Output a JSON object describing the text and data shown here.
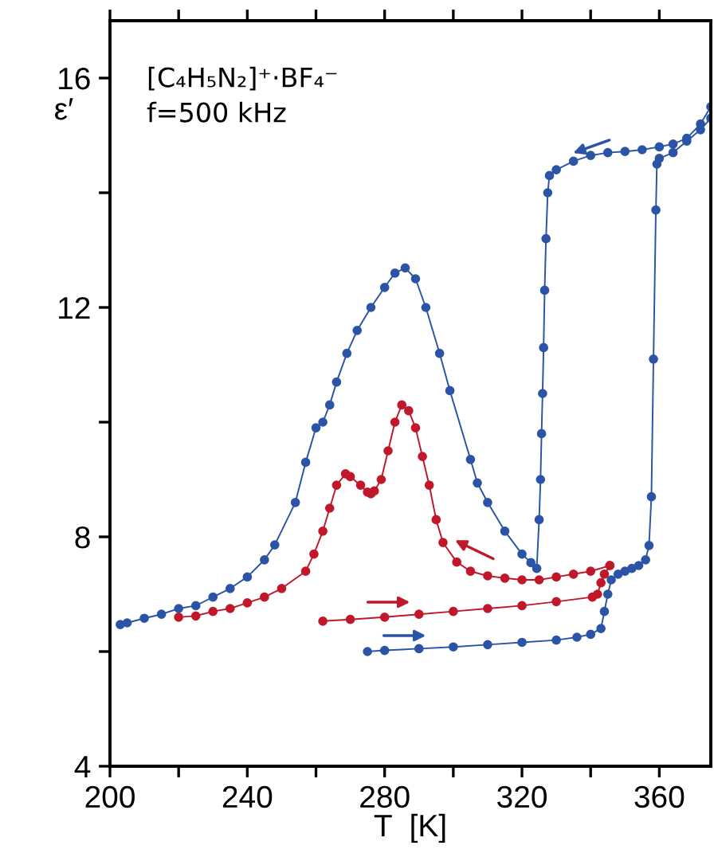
{
  "chart_data": {
    "type": "line",
    "xlabel": "T  [K]",
    "ylabel": "ε′",
    "annotations": [
      "[C₄H₅N₂]⁺·BF₄⁻",
      "f=500 kHz"
    ],
    "xlim": [
      200,
      375
    ],
    "ylim": [
      4,
      17
    ],
    "xticks": [
      200,
      {
        "value": 220,
        "label": null
      },
      240,
      {
        "value": 260,
        "label": null
      },
      280,
      {
        "value": 300,
        "label": null
      },
      320,
      {
        "value": 340,
        "label": null
      },
      360
    ],
    "yticks": [
      4,
      {
        "value": 6,
        "label": null
      },
      8,
      {
        "value": 10,
        "label": null
      },
      12,
      {
        "value": 14,
        "label": null
      },
      16
    ],
    "marker": "circle",
    "line_style": "solid",
    "grid": false,
    "legend": false,
    "series": [
      {
        "color": "#2b54a6",
        "x": [
          275,
          280,
          290,
          300,
          310,
          320,
          330,
          336,
          340,
          343,
          344,
          345,
          346,
          348,
          350,
          352,
          354,
          356,
          357,
          357.7,
          358.3,
          359,
          359.3,
          360,
          364,
          368,
          372,
          375
        ],
        "values": [
          6.0,
          6.02,
          6.05,
          6.08,
          6.12,
          6.16,
          6.2,
          6.25,
          6.3,
          6.4,
          6.7,
          7.0,
          7.25,
          7.35,
          7.4,
          7.45,
          7.5,
          7.6,
          7.85,
          8.7,
          11.1,
          13.7,
          14.5,
          14.6,
          14.7,
          14.9,
          15.1,
          15.3
        ]
      },
      {
        "color": "#2b54a6",
        "x": [
          375,
          372,
          368,
          364,
          360,
          355,
          350,
          345,
          340,
          335,
          330,
          328,
          327.5,
          327,
          326.6,
          326.3,
          326,
          325.7,
          325.4,
          325,
          324.3,
          322.6,
          320,
          315,
          310,
          307,
          305,
          299,
          296,
          292,
          289,
          286,
          283,
          280,
          276,
          272,
          269,
          266,
          264,
          262,
          260,
          257,
          254,
          248,
          245,
          240,
          235,
          230,
          225,
          220,
          215,
          210,
          205,
          203
        ],
        "values": [
          15.5,
          15.2,
          14.95,
          14.85,
          14.8,
          14.75,
          14.72,
          14.7,
          14.65,
          14.55,
          14.4,
          14.3,
          14.0,
          13.2,
          12.3,
          11.3,
          10.5,
          9.8,
          9.0,
          8.3,
          7.45,
          7.55,
          7.7,
          8.1,
          8.6,
          8.94,
          9.35,
          10.55,
          11.2,
          12.0,
          12.5,
          12.69,
          12.6,
          12.35,
          12.0,
          11.6,
          11.2,
          10.7,
          10.3,
          10.0,
          9.9,
          9.3,
          8.6,
          7.86,
          7.6,
          7.3,
          7.1,
          6.95,
          6.8,
          6.75,
          6.65,
          6.58,
          6.5,
          6.47
        ]
      },
      {
        "color": "#c0182a",
        "x": [
          345.6,
          340,
          335,
          330,
          325,
          320,
          315,
          310,
          305,
          301,
          297,
          295,
          293,
          291,
          289,
          287,
          285,
          283,
          281,
          279,
          277,
          276,
          275,
          273,
          270,
          268.6,
          266,
          264,
          262,
          259.4,
          257,
          250,
          245,
          240,
          235,
          230,
          225,
          220
        ],
        "values": [
          7.5,
          7.4,
          7.35,
          7.3,
          7.25,
          7.25,
          7.28,
          7.32,
          7.4,
          7.56,
          7.9,
          8.3,
          8.9,
          9.4,
          9.9,
          10.2,
          10.3,
          10.0,
          9.5,
          9.0,
          8.8,
          8.75,
          8.78,
          8.9,
          9.05,
          9.1,
          8.9,
          8.5,
          8.1,
          7.7,
          7.4,
          7.1,
          6.95,
          6.85,
          6.75,
          6.7,
          6.62,
          6.6
        ]
      },
      {
        "color": "#c0182a",
        "x": [
          262,
          270,
          280,
          290,
          300,
          310,
          320,
          330,
          340.5,
          342,
          343,
          344,
          345.6
        ],
        "values": [
          6.53,
          6.56,
          6.6,
          6.65,
          6.7,
          6.75,
          6.8,
          6.87,
          6.95,
          7.0,
          7.2,
          7.35,
          7.5
        ]
      }
    ]
  }
}
